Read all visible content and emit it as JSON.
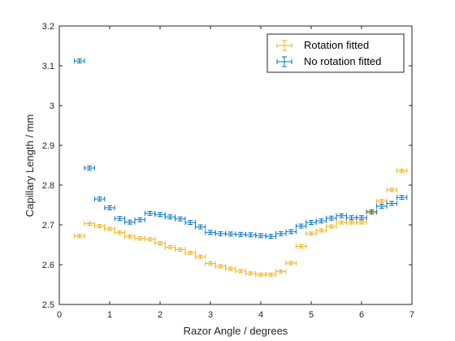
{
  "chart_data": {
    "type": "scatter",
    "title": "",
    "xlabel": "Razor Angle / degrees",
    "ylabel": "Capillary Length / mm",
    "xlim": [
      0,
      7
    ],
    "ylim": [
      2.5,
      3.2
    ],
    "xticks": [
      "0",
      "1",
      "2",
      "3",
      "4",
      "5",
      "6",
      "7"
    ],
    "yticks": [
      "2.5",
      "2.6",
      "2.7",
      "2.8",
      "2.9",
      "3",
      "3.1",
      "3.2"
    ],
    "grid": false,
    "legend_position": "top-right",
    "series": [
      {
        "name": "Rotation fitted",
        "color": "#EDB120",
        "x_error": 0.1,
        "y_error": 0.004,
        "points": [
          [
            0.4,
            2.672
          ],
          [
            0.6,
            2.703
          ],
          [
            0.8,
            2.697
          ],
          [
            1.0,
            2.69
          ],
          [
            1.2,
            2.681
          ],
          [
            1.4,
            2.671
          ],
          [
            1.6,
            2.666
          ],
          [
            1.8,
            2.664
          ],
          [
            2.0,
            2.654
          ],
          [
            2.2,
            2.644
          ],
          [
            2.4,
            2.638
          ],
          [
            2.6,
            2.63
          ],
          [
            2.8,
            2.62
          ],
          [
            3.0,
            2.603
          ],
          [
            3.2,
            2.596
          ],
          [
            3.4,
            2.59
          ],
          [
            3.6,
            2.584
          ],
          [
            3.8,
            2.578
          ],
          [
            4.0,
            2.575
          ],
          [
            4.2,
            2.575
          ],
          [
            4.4,
            2.583
          ],
          [
            4.6,
            2.604
          ],
          [
            4.8,
            2.646
          ],
          [
            5.0,
            2.678
          ],
          [
            5.2,
            2.686
          ],
          [
            5.4,
            2.696
          ],
          [
            5.6,
            2.706
          ],
          [
            5.8,
            2.706
          ],
          [
            6.0,
            2.706
          ],
          [
            6.2,
            2.731
          ],
          [
            6.4,
            2.76
          ],
          [
            6.6,
            2.788
          ],
          [
            6.8,
            2.836
          ]
        ]
      },
      {
        "name": "No rotation fitted",
        "color": "#0072BD",
        "x_error": 0.1,
        "y_error": 0.005,
        "points": [
          [
            0.4,
            3.112
          ],
          [
            0.6,
            2.843
          ],
          [
            0.8,
            2.765
          ],
          [
            1.0,
            2.743
          ],
          [
            1.2,
            2.716
          ],
          [
            1.4,
            2.707
          ],
          [
            1.6,
            2.713
          ],
          [
            1.8,
            2.729
          ],
          [
            2.0,
            2.726
          ],
          [
            2.2,
            2.72
          ],
          [
            2.4,
            2.715
          ],
          [
            2.6,
            2.706
          ],
          [
            2.8,
            2.695
          ],
          [
            3.0,
            2.681
          ],
          [
            3.2,
            2.678
          ],
          [
            3.4,
            2.677
          ],
          [
            3.6,
            2.676
          ],
          [
            3.8,
            2.675
          ],
          [
            4.0,
            2.673
          ],
          [
            4.2,
            2.671
          ],
          [
            4.4,
            2.678
          ],
          [
            4.6,
            2.683
          ],
          [
            4.8,
            2.697
          ],
          [
            5.0,
            2.706
          ],
          [
            5.2,
            2.71
          ],
          [
            5.4,
            2.717
          ],
          [
            5.6,
            2.723
          ],
          [
            5.8,
            2.718
          ],
          [
            6.0,
            2.718
          ],
          [
            6.2,
            2.733
          ],
          [
            6.4,
            2.747
          ],
          [
            6.6,
            2.754
          ],
          [
            6.8,
            2.769
          ]
        ]
      }
    ]
  }
}
